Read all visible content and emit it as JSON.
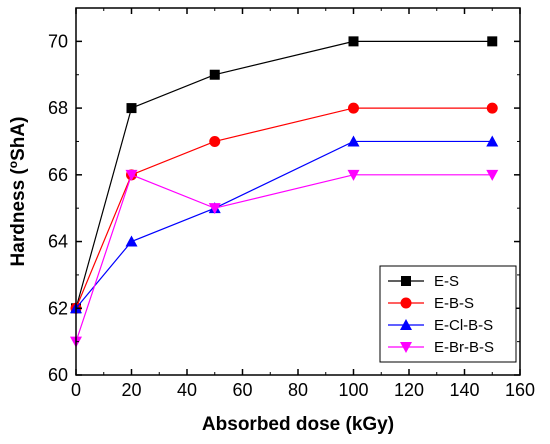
{
  "chart_data": {
    "type": "line",
    "title": "",
    "xlabel": "Absorbed dose (kGy)",
    "ylabel_main": "Hardness (",
    "ylabel_sup": "o",
    "ylabel_rest": "ShA)",
    "xlim": [
      0,
      160
    ],
    "ylim": [
      60,
      71
    ],
    "x_ticks": [
      0,
      20,
      40,
      60,
      80,
      100,
      120,
      140,
      160
    ],
    "y_ticks": [
      60,
      62,
      64,
      66,
      68,
      70
    ],
    "grid": false,
    "legend_position": "bottom-right",
    "x": [
      0,
      20,
      50,
      100,
      150
    ],
    "series": [
      {
        "name": "E-S",
        "color": "#000000",
        "marker": "square",
        "values": [
          62,
          68,
          69,
          70,
          70
        ]
      },
      {
        "name": "E-B-S",
        "color": "#ff0000",
        "marker": "circle",
        "values": [
          62,
          66,
          67,
          68,
          68
        ]
      },
      {
        "name": "E-Cl-B-S",
        "color": "#0000ff",
        "marker": "triangle-up",
        "values": [
          62,
          64,
          65,
          67,
          67
        ]
      },
      {
        "name": "E-Br-B-S",
        "color": "#ff00ff",
        "marker": "triangle-down",
        "values": [
          61,
          66,
          65,
          66,
          66
        ]
      }
    ]
  }
}
